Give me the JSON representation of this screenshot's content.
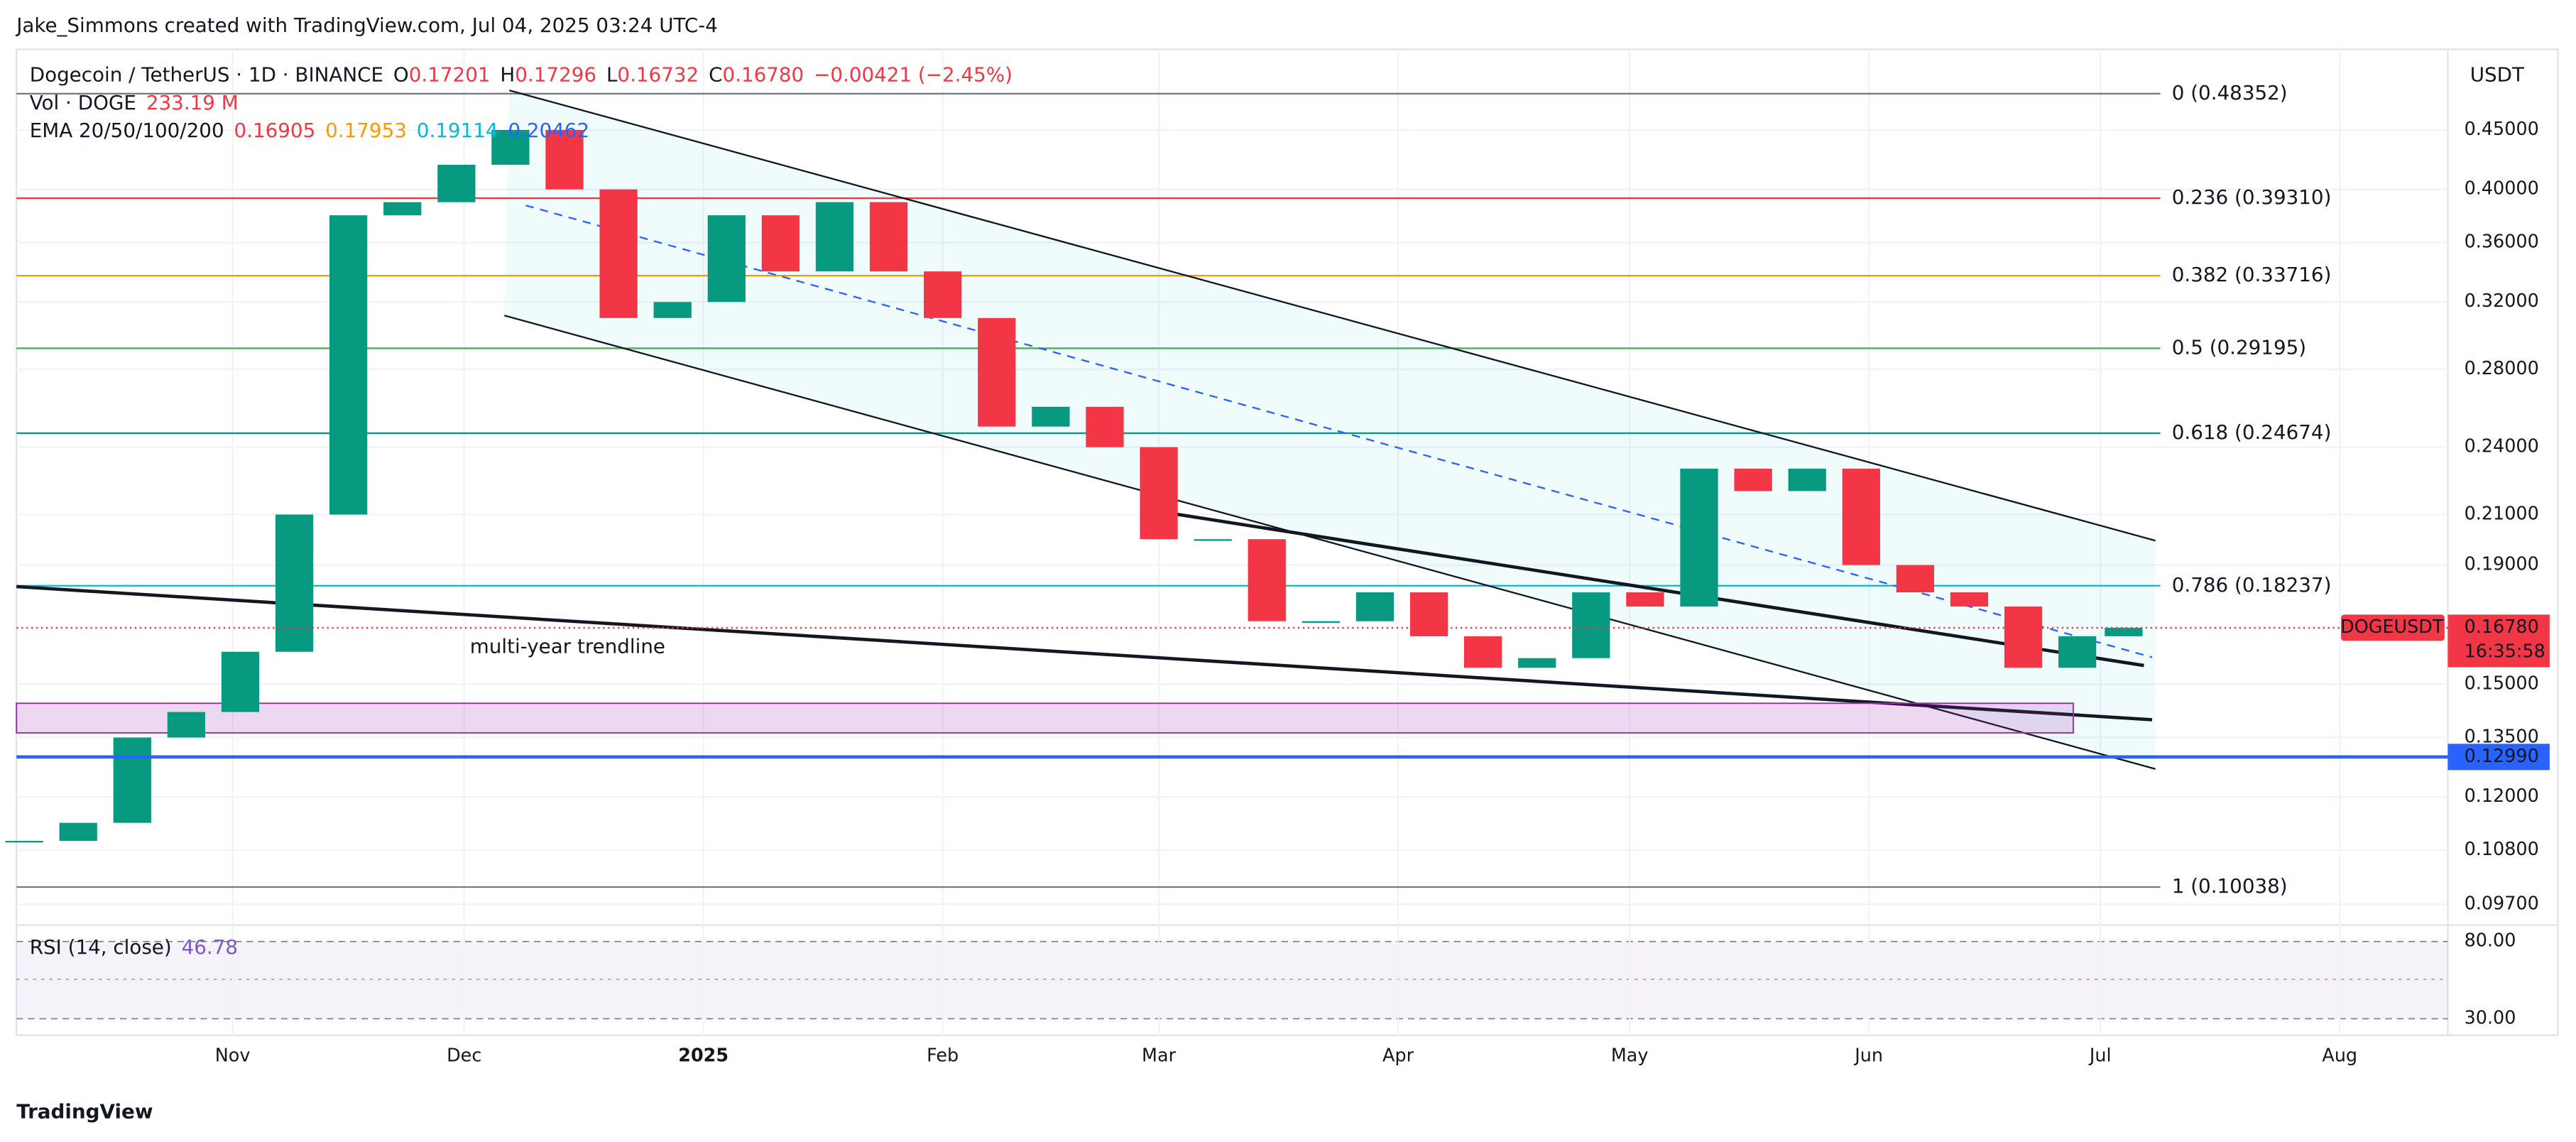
{
  "header": {
    "attribution": "Jake_Simmons created with TradingView.com, Jul 04, 2025 03:24 UTC-4",
    "symbol": "Dogecoin / TetherUS · 1D · BINANCE",
    "ohlc": [
      {
        "key": "O",
        "value": "0.17201"
      },
      {
        "key": "H",
        "value": "0.17296"
      },
      {
        "key": "L",
        "value": "0.16732"
      },
      {
        "key": "C",
        "value": "0.16780"
      }
    ],
    "change": "−0.00421 (−2.45%)",
    "volume_label": "Vol · DOGE",
    "volume_value": "233.19 M",
    "ema_label": "EMA 20/50/100/200",
    "ema_values": [
      {
        "value": "0.16905",
        "color": "#f23645"
      },
      {
        "value": "0.17953",
        "color": "#ff9800"
      },
      {
        "value": "0.19114",
        "color": "#00bcd4"
      },
      {
        "value": "0.20462",
        "color": "#2962ff"
      }
    ],
    "rsi_label": "RSI (14, close)",
    "rsi_value": "46.78"
  },
  "footer": {
    "brand": "TradingView"
  },
  "chart_data": {
    "type": "candlestick",
    "currency": "USDT",
    "log_scale": true,
    "grid": true,
    "up_color": "#089981",
    "down_color": "#f23645",
    "x": [
      "2024-10-05",
      "2024-10-12",
      "2024-10-19",
      "2024-10-26",
      "2024-11-02",
      "2024-11-09",
      "2024-11-16",
      "2024-11-23",
      "2024-11-30",
      "2024-12-07",
      "2024-12-14",
      "2024-12-21",
      "2024-12-28",
      "2025-01-04",
      "2025-01-11",
      "2025-01-18",
      "2025-01-25",
      "2025-02-01",
      "2025-02-08",
      "2025-02-15",
      "2025-02-22",
      "2025-03-01",
      "2025-03-08",
      "2025-03-15",
      "2025-03-22",
      "2025-03-29",
      "2025-04-05",
      "2025-04-12",
      "2025-04-19",
      "2025-04-26",
      "2025-05-03",
      "2025-05-10",
      "2025-05-17",
      "2025-05-24",
      "2025-05-31",
      "2025-06-07",
      "2025-06-14",
      "2025-06-21",
      "2025-06-28",
      "2025-07-04"
    ],
    "close": [
      0.11,
      0.114,
      0.135,
      0.142,
      0.16,
      0.21,
      0.38,
      0.39,
      0.42,
      0.45,
      0.4,
      0.31,
      0.32,
      0.38,
      0.34,
      0.39,
      0.34,
      0.31,
      0.25,
      0.26,
      0.24,
      0.2,
      0.2,
      0.17,
      0.17,
      0.18,
      0.165,
      0.155,
      0.158,
      0.18,
      0.175,
      0.23,
      0.22,
      0.23,
      0.19,
      0.18,
      0.175,
      0.155,
      0.165,
      0.1678
    ],
    "xlim": [
      "2024-10-04",
      "2025-08-15"
    ],
    "xticks": [
      {
        "value": "2024-11-01",
        "label": "Nov"
      },
      {
        "value": "2024-12-01",
        "label": "Dec"
      },
      {
        "value": "2025-01-01",
        "label": "2025"
      },
      {
        "value": "2025-02-01",
        "label": "Feb"
      },
      {
        "value": "2025-03-01",
        "label": "Mar"
      },
      {
        "value": "2025-04-01",
        "label": "Apr"
      },
      {
        "value": "2025-05-01",
        "label": "May"
      },
      {
        "value": "2025-06-01",
        "label": "Jun"
      },
      {
        "value": "2025-07-01",
        "label": "Jul"
      },
      {
        "value": "2025-08-01",
        "label": "Aug"
      }
    ],
    "ylim": [
      0.094,
      0.528
    ],
    "yticks": [
      {
        "value": 0.45,
        "label": "0.45000"
      },
      {
        "value": 0.4,
        "label": "0.40000"
      },
      {
        "value": 0.36,
        "label": "0.36000"
      },
      {
        "value": 0.32,
        "label": "0.32000"
      },
      {
        "value": 0.28,
        "label": "0.28000"
      },
      {
        "value": 0.24,
        "label": "0.24000"
      },
      {
        "value": 0.21,
        "label": "0.21000"
      },
      {
        "value": 0.19,
        "label": "0.19000"
      },
      {
        "value": 0.15,
        "label": "0.15000"
      },
      {
        "value": 0.135,
        "label": "0.13500"
      },
      {
        "value": 0.12,
        "label": "0.12000"
      },
      {
        "value": 0.108,
        "label": "0.10800"
      },
      {
        "value": 0.097,
        "label": "0.09700"
      }
    ],
    "fib_levels": [
      {
        "value": 0.48352,
        "label": "0 (0.48352)",
        "color": "#787b86"
      },
      {
        "value": 0.3931,
        "label": "0.236 (0.39310)",
        "color": "#f23645"
      },
      {
        "value": 0.33716,
        "label": "0.382 (0.33716)",
        "color": "#ff9800"
      },
      {
        "value": 0.29195,
        "label": "0.5 (0.29195)",
        "color": "#4caf50"
      },
      {
        "value": 0.24674,
        "label": "0.618 (0.24674)",
        "color": "#089981"
      },
      {
        "value": 0.18237,
        "label": "0.786 (0.18237)",
        "color": "#00bcd4"
      },
      {
        "value": 0.10038,
        "label": "1 (0.10038)",
        "color": "#787b86"
      }
    ],
    "support_line": {
      "value": 0.1299,
      "label": "0.12990",
      "color": "#2962ff"
    },
    "last_price": {
      "symbol": "DOGEUSDT",
      "value": 0.1678,
      "label": "0.16780",
      "countdown": "16:35:58",
      "color": "#f23645"
    },
    "annotation": "multi-year trendline",
    "rsi_ylim": [
      21.5,
      88.5
    ],
    "rsi_yticks": [
      {
        "value": 80,
        "label": "80.00"
      },
      {
        "value": 30,
        "label": "30.00"
      }
    ]
  }
}
